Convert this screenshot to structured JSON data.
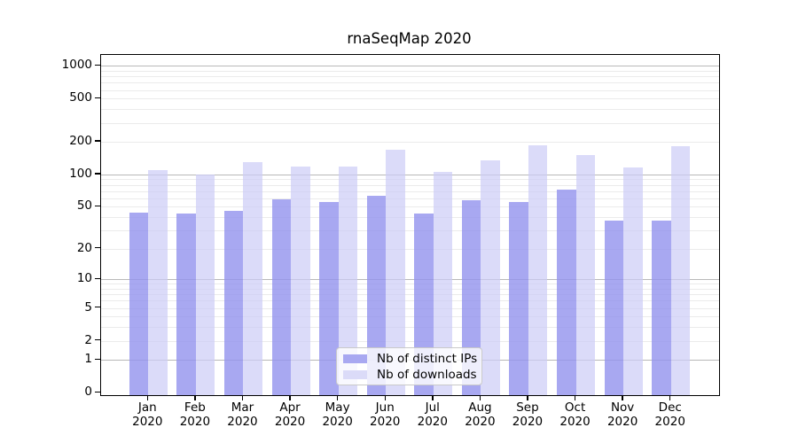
{
  "title": "rnaSeqMap 2020",
  "colors": {
    "distinct_ips_bar": "#a8a8f1",
    "downloads_bar": "#dbdbf8",
    "distinct_ips_fill_rgba": "rgba(148,148,238,0.81)",
    "downloads_fill_rgba": "rgba(204,204,247,0.70)",
    "major_gridline": "#b6b6b6",
    "minor_gridline": "#eaeaea",
    "axis": "#000000",
    "background": "#ffffff"
  },
  "legend": {
    "items": [
      {
        "label": "Nb of distinct IPs",
        "color": "#a8a8f1"
      },
      {
        "label": "Nb of downloads",
        "color": "#dbdbf8"
      }
    ]
  },
  "chart_data": {
    "type": "bar",
    "title": "rnaSeqMap 2020",
    "categories": [
      "Jan",
      "Feb",
      "Mar",
      "Apr",
      "May",
      "Jun",
      "Jul",
      "Aug",
      "Sep",
      "Oct",
      "Nov",
      "Dec"
    ],
    "x_tick_second_line": "2020",
    "series": [
      {
        "name": "Nb of distinct IPs",
        "color": "#a8a8f1",
        "values": [
          44,
          43,
          46,
          59,
          55,
          63,
          43,
          57,
          55,
          72,
          37,
          37
        ]
      },
      {
        "name": "Nb of downloads",
        "color": "#dbdbf8",
        "values": [
          109,
          99,
          130,
          119,
          119,
          168,
          106,
          134,
          185,
          151,
          115,
          181
        ]
      }
    ],
    "xlabel": "",
    "ylabel": "",
    "y_scale": "log10(value+1)",
    "ylim": [
      0,
      1260
    ],
    "y_ticks": [
      0,
      1,
      2,
      5,
      10,
      20,
      50,
      100,
      200,
      500,
      1000
    ],
    "y_major_gridlines": [
      1,
      10,
      100,
      1000
    ],
    "y_minor_gridlines": [
      2,
      3,
      4,
      5,
      6,
      7,
      8,
      9,
      20,
      30,
      40,
      50,
      60,
      70,
      80,
      90,
      200,
      300,
      400,
      500,
      600,
      700,
      800,
      900
    ],
    "grid": "horizontal major+minor",
    "legend_position": "inside bottom-center"
  }
}
